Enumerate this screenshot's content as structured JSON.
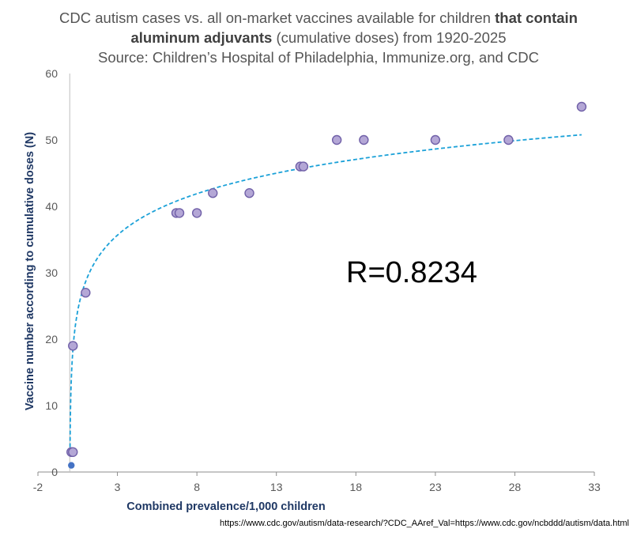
{
  "chart_data": {
    "type": "scatter",
    "title_line1": "CDC autism cases vs. all on-market vaccines available for children ",
    "title_bold1": "that contain",
    "title_bold2": "aluminum adjuvants",
    "title_line2_rest": " (cumulative doses) from 1920-2025",
    "subtitle": "Source: Children’s Hospital of Philadelphia, Immunize.org, and CDC",
    "xlabel": "Combined prevalence/1,000 children",
    "ylabel": "Vaccine number according to cumulative doses (N)",
    "annotation": "R=0.8234",
    "source_url": "https://www.cdc.gov/autism/data-research/?CDC_AAref_Val=https://www.cdc.gov/ncbddd/autism/data.html",
    "xlim": [
      -2,
      33
    ],
    "ylim": [
      0,
      60
    ],
    "x_ticks": [
      "-2",
      "3",
      "8",
      "13",
      "18",
      "23",
      "28",
      "33"
    ],
    "y_ticks": [
      "0",
      "10",
      "20",
      "30",
      "40",
      "50",
      "60"
    ],
    "grid": false,
    "series": [
      {
        "marker": "circle",
        "color": "#b4a7d6",
        "edge_color": "#7060a8",
        "points": [
          {
            "x": 0.1,
            "y": 1
          },
          {
            "x": 0.1,
            "y": 3
          },
          {
            "x": 0.2,
            "y": 3
          },
          {
            "x": 0.2,
            "y": 19
          },
          {
            "x": 1.0,
            "y": 27
          },
          {
            "x": 6.7,
            "y": 39
          },
          {
            "x": 6.9,
            "y": 39
          },
          {
            "x": 8.0,
            "y": 39
          },
          {
            "x": 9.0,
            "y": 42
          },
          {
            "x": 11.3,
            "y": 42
          },
          {
            "x": 14.5,
            "y": 46
          },
          {
            "x": 14.7,
            "y": 46
          },
          {
            "x": 16.8,
            "y": 50
          },
          {
            "x": 18.5,
            "y": 50
          },
          {
            "x": 23.0,
            "y": 50
          },
          {
            "x": 27.6,
            "y": 50
          },
          {
            "x": 32.2,
            "y": 55
          }
        ]
      }
    ],
    "trendline": {
      "type": "logarithmic",
      "color": "#1ba1d8",
      "style": "dashed",
      "a": 28.66,
      "b": 6.37
    }
  }
}
